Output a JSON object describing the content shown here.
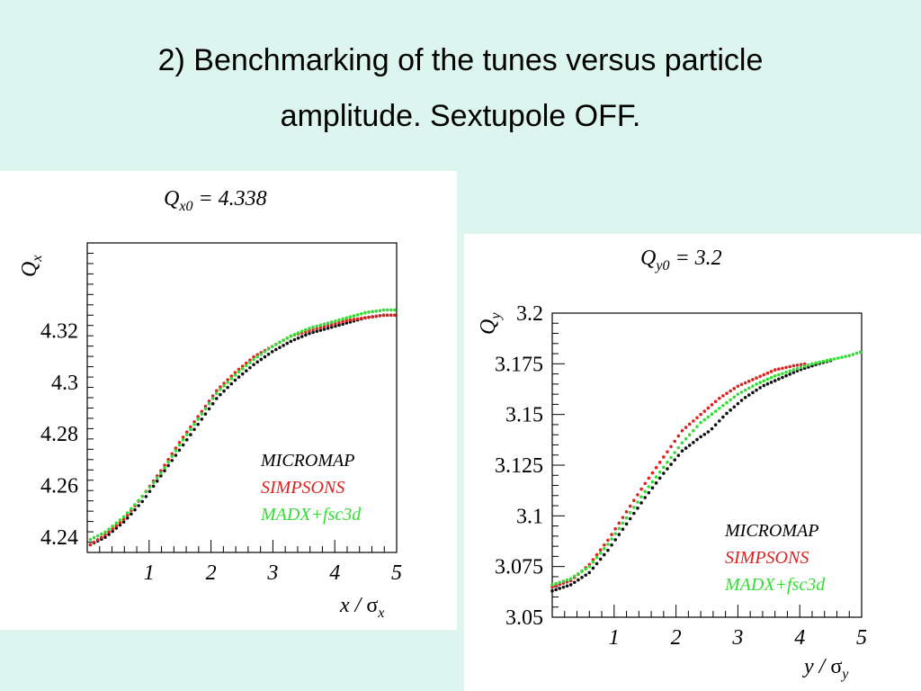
{
  "slide": {
    "title_line1": "2) Benchmarking of the tunes versus particle",
    "title_line2": "amplitude. Sextupole OFF."
  },
  "chart_data": [
    {
      "type": "scatter",
      "annotation": {
        "main": "Q",
        "sub": "x0",
        "rest": " = 4.338"
      },
      "xlabel": {
        "main": "x / ",
        "sigma": "σ",
        "sub": "x"
      },
      "ylabel": {
        "main": "Q",
        "sub": "x"
      },
      "xlim": [
        0,
        5
      ],
      "ylim": [
        4.234,
        4.354
      ],
      "xticks": [
        1,
        2,
        3,
        4,
        5
      ],
      "xtick_labels": [
        "1",
        "2",
        "3",
        "4",
        "5"
      ],
      "yticks": [
        4.24,
        4.26,
        4.28,
        4.3,
        4.32
      ],
      "ytick_labels": [
        "4.24",
        "4.26",
        "4.28",
        "4.3",
        "4.32"
      ],
      "legend": {
        "position": "bottom-right",
        "entries": [
          "MICROMAP",
          "SIMPSONS",
          "MADX+fsc3d"
        ]
      },
      "series": [
        {
          "name": "MICROMAP",
          "color": "#111111",
          "x": [
            0.05,
            0.3,
            0.6,
            0.9,
            1.2,
            1.5,
            1.8,
            2.1,
            2.4,
            2.7,
            3.0,
            3.3,
            3.6,
            3.9,
            4.2,
            4.5,
            4.8,
            5.0
          ],
          "y": [
            4.237,
            4.24,
            4.246,
            4.254,
            4.264,
            4.274,
            4.284,
            4.294,
            4.301,
            4.307,
            4.312,
            4.316,
            4.319,
            4.321,
            4.323,
            4.325,
            4.326,
            4.326
          ]
        },
        {
          "name": "SIMPSONS",
          "color": "#dd2222",
          "x": [
            0.05,
            0.3,
            0.6,
            0.9,
            1.2,
            1.5,
            1.8,
            2.1,
            2.4,
            2.7,
            3.0,
            3.3,
            3.6,
            3.9,
            4.2,
            4.5,
            4.8,
            5.0
          ],
          "y": [
            4.237,
            4.241,
            4.247,
            4.256,
            4.266,
            4.277,
            4.287,
            4.297,
            4.304,
            4.31,
            4.314,
            4.318,
            4.32,
            4.322,
            4.324,
            4.325,
            4.326,
            4.326
          ]
        },
        {
          "name": "MADX+fsc3d",
          "color": "#33dd33",
          "x": [
            0.05,
            0.3,
            0.6,
            0.9,
            1.2,
            1.5,
            1.8,
            2.1,
            2.4,
            2.7,
            3.0,
            3.3,
            3.6,
            3.9,
            4.2,
            4.5,
            4.8,
            5.0
          ],
          "y": [
            4.239,
            4.242,
            4.248,
            4.256,
            4.265,
            4.276,
            4.286,
            4.296,
            4.303,
            4.309,
            4.314,
            4.318,
            4.321,
            4.323,
            4.325,
            4.327,
            4.328,
            4.328
          ]
        }
      ]
    },
    {
      "type": "scatter",
      "annotation": {
        "main": "Q",
        "sub": "y0",
        "rest": " = 3.2"
      },
      "xlabel": {
        "main": "y / ",
        "sigma": "σ",
        "sub": "y"
      },
      "ylabel": {
        "main": "Q",
        "sub": "y"
      },
      "xlim": [
        0,
        5
      ],
      "ylim": [
        3.05,
        3.2
      ],
      "xticks": [
        1,
        2,
        3,
        4,
        5
      ],
      "xtick_labels": [
        "1",
        "2",
        "3",
        "4",
        "5"
      ],
      "yticks": [
        3.05,
        3.075,
        3.1,
        3.125,
        3.15,
        3.175,
        3.2
      ],
      "ytick_labels": [
        "3.05",
        "3.075",
        "3.1",
        "3.125",
        "3.15",
        "3.175",
        "3.2"
      ],
      "legend": {
        "position": "bottom-right",
        "entries": [
          "MICROMAP",
          "SIMPSONS",
          "MADX+fsc3d"
        ]
      },
      "series": [
        {
          "name": "MICROMAP",
          "color": "#111111",
          "x": [
            0.0,
            0.3,
            0.6,
            0.9,
            1.2,
            1.5,
            1.8,
            2.1,
            2.4,
            2.55,
            2.8,
            3.1,
            3.4,
            3.7,
            4.0,
            4.3,
            4.55
          ],
          "y": [
            3.063,
            3.066,
            3.072,
            3.083,
            3.096,
            3.109,
            3.121,
            3.132,
            3.139,
            3.142,
            3.15,
            3.158,
            3.164,
            3.168,
            3.172,
            3.175,
            3.177
          ]
        },
        {
          "name": "SIMPSONS",
          "color": "#dd2222",
          "x": [
            0.0,
            0.3,
            0.6,
            0.9,
            1.2,
            1.5,
            1.8,
            2.1,
            2.4,
            2.7,
            3.0,
            3.3,
            3.6,
            3.9,
            4.1
          ],
          "y": [
            3.065,
            3.068,
            3.076,
            3.088,
            3.102,
            3.116,
            3.129,
            3.142,
            3.15,
            3.158,
            3.164,
            3.168,
            3.172,
            3.174,
            3.175
          ]
        },
        {
          "name": "MADX+fsc3d",
          "color": "#33dd33",
          "x": [
            0.0,
            0.3,
            0.6,
            0.9,
            1.2,
            1.5,
            1.8,
            2.1,
            2.4,
            2.7,
            3.0,
            3.3,
            3.6,
            3.9,
            4.2,
            4.5,
            4.8,
            5.0
          ],
          "y": [
            3.066,
            3.069,
            3.075,
            3.086,
            3.099,
            3.112,
            3.124,
            3.136,
            3.146,
            3.153,
            3.16,
            3.165,
            3.169,
            3.172,
            3.175,
            3.177,
            3.179,
            3.181
          ]
        }
      ]
    }
  ]
}
